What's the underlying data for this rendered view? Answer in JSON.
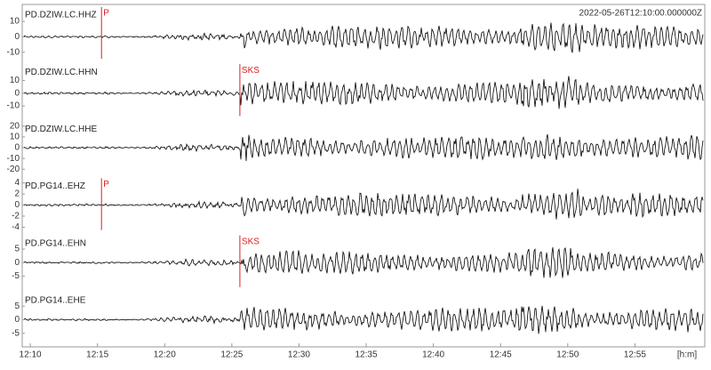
{
  "chart_data": {
    "type": "seismogram",
    "start_time": "2022-05-26T12:10:00.000000Z",
    "x_unit": "[h:m]",
    "xlim": [
      9.4,
      60.2
    ],
    "xticks": [
      {
        "value": 10,
        "label": "12:10"
      },
      {
        "value": 15,
        "label": "12:15"
      },
      {
        "value": 20,
        "label": "12:20"
      },
      {
        "value": 25,
        "label": "12:25"
      },
      {
        "value": 30,
        "label": "12:30"
      },
      {
        "value": 35,
        "label": "12:35"
      },
      {
        "value": 40,
        "label": "12:40"
      },
      {
        "value": 45,
        "label": "12:45"
      },
      {
        "value": 50,
        "label": "12:50"
      },
      {
        "value": 55,
        "label": "12:55"
      }
    ],
    "traces": [
      {
        "name": "PD.DZIW.LC.HHZ",
        "ylim": [
          -16,
          21
        ],
        "yticks": [
          10,
          0,
          -10
        ],
        "picks": [
          {
            "label": "P",
            "time": 15.3
          }
        ]
      },
      {
        "name": "PD.DZIW.LC.HHN",
        "ylim": [
          -20,
          25
        ],
        "yticks": [
          10,
          0,
          -10
        ],
        "picks": [
          {
            "label": "SKS",
            "time": 25.6
          }
        ]
      },
      {
        "name": "PD.DZIW.LC.HHE",
        "ylim": [
          -26,
          27
        ],
        "yticks": [
          20,
          10,
          0,
          -10,
          -20
        ],
        "picks": []
      },
      {
        "name": "PD.PG14..EHZ",
        "ylim": [
          -5,
          5.3
        ],
        "yticks": [
          4,
          2,
          0,
          -2,
          -4
        ],
        "picks": [
          {
            "label": "P",
            "time": 15.3
          }
        ]
      },
      {
        "name": "PD.PG14..EHN",
        "ylim": [
          -10,
          11
        ],
        "yticks": [
          5,
          0,
          -5
        ],
        "picks": [
          {
            "label": "SKS",
            "time": 25.6
          }
        ]
      },
      {
        "name": "PD.PG14..EHE",
        "ylim": [
          -10,
          11
        ],
        "yticks": [
          5,
          0,
          -5
        ],
        "picks": []
      }
    ]
  }
}
